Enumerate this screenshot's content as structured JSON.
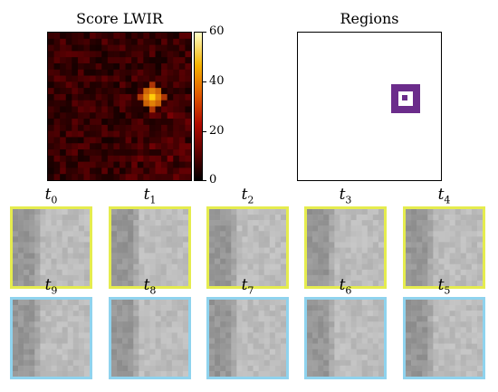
{
  "score_panel": {
    "title": "Score LWIR",
    "colorbar_ticks": [
      "60",
      "40",
      "20",
      "0"
    ],
    "colorbar_range": [
      0,
      60
    ],
    "colormap": "afmhot"
  },
  "regions_panel": {
    "title": "Regions",
    "region_color": "#6b2c8b"
  },
  "top_row": {
    "border_color": "#e5ec4e",
    "labels": [
      {
        "base": "t",
        "sub": "0"
      },
      {
        "base": "t",
        "sub": "1"
      },
      {
        "base": "t",
        "sub": "2"
      },
      {
        "base": "t",
        "sub": "3"
      },
      {
        "base": "t",
        "sub": "4"
      }
    ]
  },
  "bottom_row": {
    "border_color": "#8fd3ee",
    "labels": [
      {
        "base": "t",
        "sub": "9"
      },
      {
        "base": "t",
        "sub": "8"
      },
      {
        "base": "t",
        "sub": "7"
      },
      {
        "base": "t",
        "sub": "6"
      },
      {
        "base": "t",
        "sub": "5"
      }
    ]
  }
}
